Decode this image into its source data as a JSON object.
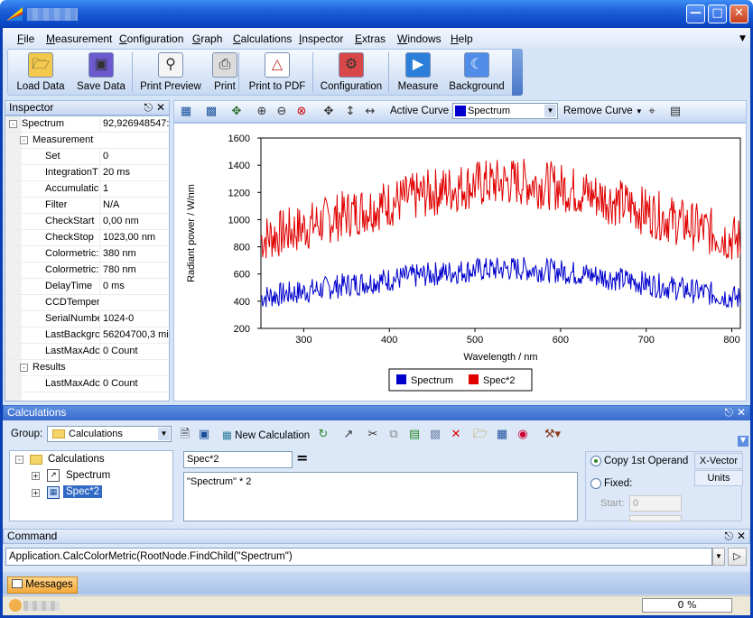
{
  "menu": [
    "File",
    "Measurement",
    "Configuration",
    "Graph",
    "Calculations",
    "Inspector",
    "Extras",
    "Windows",
    "Help"
  ],
  "toolbar": [
    {
      "label": "Load Data",
      "icon": "folder-open-icon"
    },
    {
      "label": "Save Data",
      "icon": "floppy-disk-icon"
    },
    {
      "label": "Print Preview",
      "icon": "print-preview-icon"
    },
    {
      "label": "Print",
      "icon": "printer-icon"
    },
    {
      "label": "Print to PDF",
      "icon": "pdf-icon"
    },
    {
      "label": "Configuration",
      "icon": "configuration-icon"
    },
    {
      "label": "Measure",
      "icon": "play-icon"
    },
    {
      "label": "Background",
      "icon": "moon-icon"
    }
  ],
  "inspector": {
    "title": "Inspector",
    "rows": [
      {
        "key": "Spectrum",
        "value": "92,926948547:",
        "level": 0,
        "expand": "-"
      },
      {
        "key": "Measurement",
        "value": "",
        "level": 1,
        "expand": "-"
      },
      {
        "key": "Set",
        "value": "0",
        "level": 2
      },
      {
        "key": "IntegrationT",
        "value": "20 ms",
        "level": 2
      },
      {
        "key": "Accumulatic",
        "value": "1",
        "level": 2
      },
      {
        "key": "Filter",
        "value": "N/A",
        "level": 2
      },
      {
        "key": "CheckStart",
        "value": "0,00 nm",
        "level": 2
      },
      {
        "key": "CheckStop",
        "value": "1023,00 nm",
        "level": 2
      },
      {
        "key": "Colormetric:",
        "value": "380 nm",
        "level": 2
      },
      {
        "key": "Colormetric:",
        "value": "780 nm",
        "level": 2
      },
      {
        "key": "DelayTime",
        "value": "0 ms",
        "level": 2
      },
      {
        "key": "CCDTemper",
        "value": "",
        "level": 2
      },
      {
        "key": "SerialNumbe",
        "value": "1024-0",
        "level": 2
      },
      {
        "key": "LastBackgrc",
        "value": "56204700,3 mi",
        "level": 2
      },
      {
        "key": "LastMaxAdc",
        "value": "0 Count",
        "level": 2
      },
      {
        "key": "Results",
        "value": "",
        "level": 1,
        "expand": "-"
      },
      {
        "key": "LastMaxAdc",
        "value": "0 Count",
        "level": 2
      }
    ]
  },
  "chart_toolbar": {
    "active_curve_label": "Active Curve",
    "active_curve_value": "Spectrum",
    "remove_curve_label": "Remove Curve"
  },
  "chart_data": {
    "type": "line",
    "xlabel": "Wavelength / nm",
    "ylabel": "Radiant power / W/nm",
    "xlim": [
      250,
      810
    ],
    "ylim": [
      200,
      1600
    ],
    "xticks": [
      300,
      400,
      500,
      600,
      700,
      800
    ],
    "yticks": [
      200,
      400,
      600,
      800,
      1000,
      1200,
      1400,
      1600
    ],
    "series": [
      {
        "name": "Spectrum",
        "color": "#0000cc",
        "envelope": {
          "x": [
            250,
            300,
            350,
            400,
            450,
            500,
            550,
            600,
            650,
            700,
            750,
            800,
            810
          ],
          "y": [
            430,
            470,
            520,
            560,
            600,
            630,
            640,
            620,
            580,
            530,
            480,
            430,
            420
          ]
        },
        "noise": 130
      },
      {
        "name": "Spec*2",
        "color": "#e00000",
        "envelope": {
          "x": [
            250,
            300,
            350,
            400,
            450,
            500,
            550,
            600,
            650,
            700,
            750,
            800,
            810
          ],
          "y": [
            860,
            940,
            1040,
            1120,
            1200,
            1260,
            1280,
            1240,
            1160,
            1060,
            960,
            860,
            840
          ]
        },
        "noise": 260
      }
    ],
    "legend": "bottom-center"
  },
  "calc": {
    "title": "Calculations",
    "group_label": "Group:",
    "group_value": "Calculations",
    "new_calc_label": "New Calculation",
    "tree_root": "Calculations",
    "tree_items": [
      "Spectrum",
      "Spec*2"
    ],
    "formula_name": "Spec*2",
    "equals": "=",
    "formula": "\"Spectrum\" * 2",
    "opt_copy": "Copy 1st Operand",
    "opt_fixed": "Fixed:",
    "start_label": "Start:",
    "start_value": "0",
    "xvector_label": "X-Vector",
    "units_label": "Units"
  },
  "command": {
    "title": "Command",
    "text": "Application.CalcColorMetric(RootNode.FindChild(\"Spectrum\")"
  },
  "messages_tab": "Messages",
  "status": {
    "progress": "0 %"
  }
}
